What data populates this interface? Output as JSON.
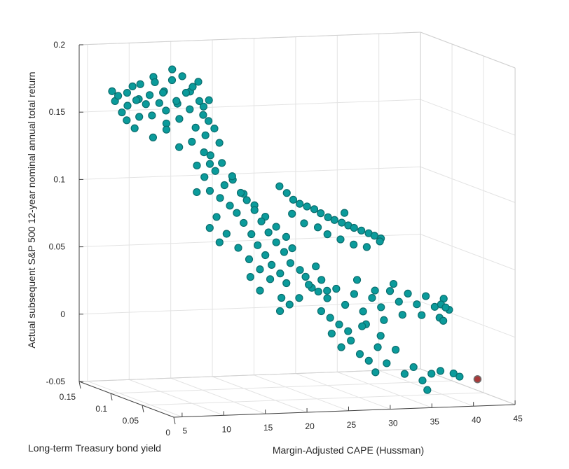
{
  "chart_data": {
    "type": "scatter",
    "dimensions": 3,
    "xlabel": "Margin-Adjusted CAPE (Hussman)",
    "ylabel": "Long-term Treasury bond yield",
    "zlabel": "Actual subsequent S&P 500 12-year nominal annual total return",
    "xlim": [
      4,
      45
    ],
    "ylim": [
      0,
      0.15
    ],
    "zlim": [
      -0.05,
      0.2
    ],
    "xticks": [
      "5",
      "10",
      "15",
      "20",
      "25",
      "30",
      "35",
      "40",
      "45"
    ],
    "yticks": [
      "0",
      "0.05",
      "0.1",
      "0.15"
    ],
    "zticks": [
      "-0.05",
      "0",
      "0.05",
      "0.1",
      "0.15",
      "0.2"
    ],
    "grid": true,
    "marker_color": "#0b9b9b",
    "marker_edge": "#0a6e6e",
    "highlight_color": "#a83a3a",
    "columns": [
      "cape",
      "yield",
      "return"
    ],
    "points": [
      [
        7.8,
        0.148,
        0.165
      ],
      [
        8.0,
        0.146,
        0.158
      ],
      [
        8.3,
        0.145,
        0.162
      ],
      [
        8.6,
        0.143,
        0.15
      ],
      [
        9.0,
        0.14,
        0.165
      ],
      [
        9.2,
        0.142,
        0.155
      ],
      [
        9.5,
        0.138,
        0.17
      ],
      [
        9.8,
        0.136,
        0.16
      ],
      [
        10.0,
        0.134,
        0.148
      ],
      [
        10.2,
        0.135,
        0.172
      ],
      [
        10.5,
        0.13,
        0.158
      ],
      [
        10.8,
        0.128,
        0.165
      ],
      [
        11.0,
        0.127,
        0.15
      ],
      [
        11.2,
        0.125,
        0.175
      ],
      [
        11.5,
        0.122,
        0.16
      ],
      [
        11.8,
        0.12,
        0.168
      ],
      [
        12.0,
        0.118,
        0.155
      ],
      [
        12.2,
        0.12,
        0.145
      ],
      [
        12.5,
        0.115,
        0.178
      ],
      [
        12.8,
        0.112,
        0.163
      ],
      [
        13.0,
        0.11,
        0.15
      ],
      [
        13.2,
        0.108,
        0.182
      ],
      [
        13.5,
        0.106,
        0.17
      ],
      [
        13.8,
        0.104,
        0.158
      ],
      [
        14.0,
        0.102,
        0.175
      ],
      [
        14.2,
        0.1,
        0.145
      ],
      [
        14.5,
        0.098,
        0.165
      ],
      [
        14.8,
        0.096,
        0.155
      ],
      [
        15.0,
        0.095,
        0.14
      ],
      [
        9.3,
        0.132,
        0.14
      ],
      [
        10.6,
        0.12,
        0.135
      ],
      [
        11.6,
        0.112,
        0.142
      ],
      [
        12.6,
        0.105,
        0.13
      ],
      [
        13.6,
        0.098,
        0.135
      ],
      [
        14.6,
        0.092,
        0.128
      ],
      [
        8.8,
        0.138,
        0.145
      ],
      [
        12.3,
        0.125,
        0.168
      ],
      [
        13.3,
        0.117,
        0.16
      ],
      [
        14.3,
        0.11,
        0.17
      ],
      [
        15.3,
        0.102,
        0.16
      ],
      [
        15.6,
        0.098,
        0.15
      ],
      [
        16.0,
        0.094,
        0.145
      ],
      [
        11.4,
        0.13,
        0.178
      ],
      [
        12.9,
        0.12,
        0.185
      ],
      [
        14.9,
        0.105,
        0.178
      ],
      [
        15.8,
        0.1,
        0.165
      ],
      [
        10.4,
        0.14,
        0.16
      ],
      [
        16.3,
        0.09,
        0.135
      ],
      [
        15.0,
        0.088,
        0.12
      ],
      [
        13.9,
        0.094,
        0.118
      ],
      [
        14.5,
        0.09,
        0.11
      ],
      [
        15.0,
        0.088,
        0.1
      ],
      [
        15.5,
        0.086,
        0.115
      ],
      [
        16.0,
        0.085,
        0.095
      ],
      [
        16.3,
        0.082,
        0.105
      ],
      [
        16.8,
        0.08,
        0.09
      ],
      [
        17.0,
        0.079,
        0.112
      ],
      [
        17.4,
        0.077,
        0.085
      ],
      [
        17.8,
        0.076,
        0.1
      ],
      [
        18.0,
        0.074,
        0.078
      ],
      [
        18.3,
        0.073,
        0.095
      ],
      [
        18.7,
        0.071,
        0.07
      ],
      [
        19.0,
        0.07,
        0.088
      ],
      [
        19.3,
        0.069,
        0.062
      ],
      [
        19.6,
        0.067,
        0.08
      ],
      [
        20.0,
        0.066,
        0.055
      ],
      [
        20.3,
        0.065,
        0.072
      ],
      [
        20.6,
        0.064,
        0.048
      ],
      [
        21.0,
        0.062,
        0.065
      ],
      [
        21.4,
        0.061,
        0.042
      ],
      [
        21.8,
        0.06,
        0.058
      ],
      [
        22.0,
        0.059,
        0.035
      ],
      [
        15.2,
        0.08,
        0.082
      ],
      [
        16.1,
        0.076,
        0.07
      ],
      [
        17.2,
        0.072,
        0.06
      ],
      [
        18.2,
        0.068,
        0.052
      ],
      [
        19.2,
        0.064,
        0.045
      ],
      [
        20.2,
        0.061,
        0.038
      ],
      [
        16.6,
        0.09,
        0.12
      ],
      [
        17.6,
        0.086,
        0.108
      ],
      [
        18.6,
        0.082,
        0.098
      ],
      [
        19.6,
        0.078,
        0.09
      ],
      [
        20.6,
        0.074,
        0.082
      ],
      [
        21.6,
        0.07,
        0.075
      ],
      [
        22.5,
        0.066,
        0.068
      ],
      [
        23.0,
        0.063,
        0.06
      ],
      [
        22.4,
        0.058,
        0.05
      ],
      [
        23.4,
        0.056,
        0.045
      ],
      [
        24.0,
        0.055,
        0.04
      ],
      [
        24.6,
        0.053,
        0.032
      ],
      [
        18.9,
        0.06,
        0.03
      ],
      [
        17.9,
        0.062,
        0.04
      ],
      [
        21.1,
        0.055,
        0.025
      ],
      [
        25.0,
        0.052,
        0.048
      ],
      [
        25.6,
        0.051,
        0.038
      ],
      [
        26.2,
        0.05,
        0.03
      ],
      [
        15.6,
        0.095,
        0.125
      ],
      [
        13.2,
        0.085,
        0.1
      ],
      [
        14.0,
        0.075,
        0.075
      ],
      [
        14.8,
        0.07,
        0.065
      ],
      [
        22.0,
        0.07,
        0.105
      ],
      [
        22.8,
        0.069,
        0.1
      ],
      [
        23.5,
        0.068,
        0.095
      ],
      [
        24.2,
        0.067,
        0.092
      ],
      [
        25.0,
        0.066,
        0.09
      ],
      [
        25.8,
        0.065,
        0.088
      ],
      [
        26.5,
        0.064,
        0.085
      ],
      [
        27.3,
        0.063,
        0.082
      ],
      [
        28.0,
        0.062,
        0.08
      ],
      [
        28.8,
        0.061,
        0.078
      ],
      [
        29.5,
        0.06,
        0.076
      ],
      [
        30.2,
        0.06,
        0.074
      ],
      [
        31.0,
        0.059,
        0.072
      ],
      [
        31.8,
        0.058,
        0.07
      ],
      [
        32.5,
        0.058,
        0.068
      ],
      [
        33.2,
        0.057,
        0.066
      ],
      [
        27.0,
        0.06,
        0.07
      ],
      [
        28.5,
        0.059,
        0.066
      ],
      [
        30.0,
        0.058,
        0.062
      ],
      [
        31.5,
        0.057,
        0.06
      ],
      [
        33.0,
        0.056,
        0.064
      ],
      [
        26.0,
        0.062,
        0.075
      ],
      [
        24.5,
        0.064,
        0.078
      ],
      [
        23.2,
        0.066,
        0.085
      ],
      [
        29.2,
        0.062,
        0.085
      ],
      [
        24.0,
        0.05,
        0.035
      ],
      [
        25.0,
        0.048,
        0.03
      ],
      [
        26.0,
        0.047,
        0.025
      ],
      [
        27.0,
        0.046,
        0.032
      ],
      [
        28.0,
        0.045,
        0.02
      ],
      [
        29.0,
        0.044,
        0.028
      ],
      [
        30.0,
        0.043,
        0.015
      ],
      [
        31.0,
        0.042,
        0.025
      ],
      [
        32.0,
        0.041,
        0.018
      ],
      [
        33.0,
        0.04,
        0.03
      ],
      [
        34.0,
        0.039,
        0.022
      ],
      [
        35.0,
        0.038,
        0.028
      ],
      [
        36.0,
        0.037,
        0.02
      ],
      [
        37.0,
        0.036,
        0.026
      ],
      [
        38.0,
        0.035,
        0.018
      ],
      [
        39.0,
        0.034,
        0.024
      ],
      [
        38.6,
        0.033,
        0.02
      ],
      [
        39.5,
        0.032,
        0.016
      ],
      [
        36.5,
        0.036,
        0.012
      ],
      [
        38.5,
        0.034,
        0.01
      ],
      [
        38.8,
        0.032,
        0.008
      ],
      [
        39.0,
        0.031,
        0.018
      ],
      [
        34.5,
        0.04,
        0.012
      ],
      [
        32.5,
        0.043,
        0.008
      ],
      [
        30.5,
        0.045,
        0.005
      ],
      [
        28.5,
        0.047,
        0.0
      ],
      [
        26.5,
        0.049,
        0.01
      ],
      [
        25.5,
        0.05,
        0.015
      ],
      [
        27.5,
        0.048,
        0.005
      ],
      [
        31.5,
        0.044,
        0.03
      ],
      [
        33.5,
        0.041,
        0.035
      ],
      [
        29.5,
        0.046,
        0.038
      ],
      [
        23.0,
        0.052,
        0.025
      ],
      [
        22.0,
        0.054,
        0.02
      ],
      [
        21.0,
        0.056,
        0.015
      ],
      [
        26.0,
        0.04,
        0.0
      ],
      [
        27.0,
        0.038,
        -0.01
      ],
      [
        28.0,
        0.036,
        -0.005
      ],
      [
        29.0,
        0.035,
        -0.015
      ],
      [
        30.0,
        0.034,
        -0.02
      ],
      [
        30.5,
        0.03,
        -0.028
      ],
      [
        31.0,
        0.033,
        -0.01
      ],
      [
        32.0,
        0.032,
        -0.022
      ],
      [
        33.0,
        0.031,
        -0.012
      ],
      [
        34.0,
        0.03,
        -0.03
      ],
      [
        35.0,
        0.029,
        -0.025
      ],
      [
        36.0,
        0.028,
        -0.035
      ],
      [
        36.5,
        0.027,
        -0.042
      ],
      [
        37.0,
        0.027,
        -0.03
      ],
      [
        38.0,
        0.026,
        -0.028
      ],
      [
        39.5,
        0.025,
        -0.03
      ],
      [
        40.0,
        0.022,
        -0.032
      ],
      [
        31.5,
        0.035,
        -0.002
      ],
      [
        29.5,
        0.038,
        0.005
      ]
    ],
    "highlight_point": [
      42.0,
      0.02,
      -0.034
    ]
  }
}
